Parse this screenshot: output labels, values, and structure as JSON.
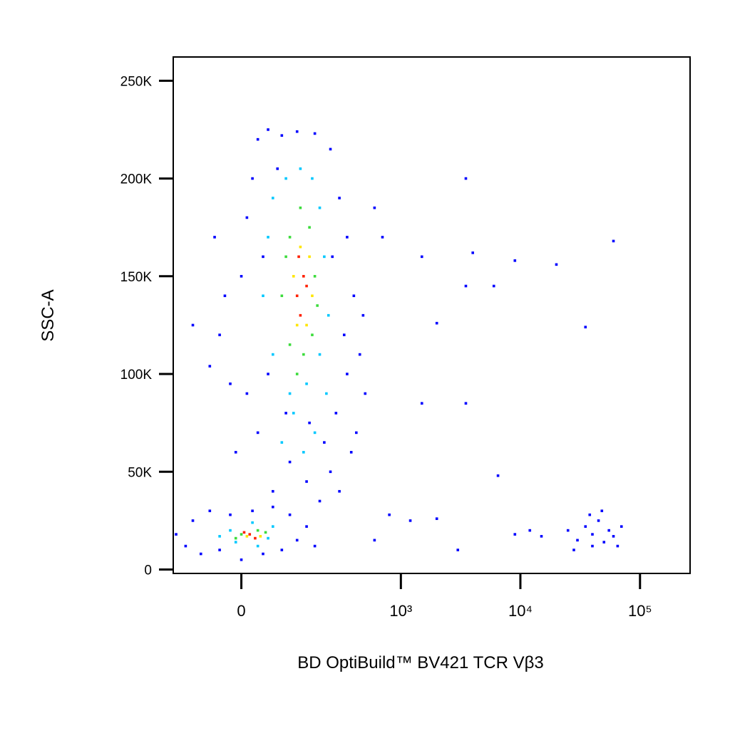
{
  "chart_data": {
    "type": "scatter",
    "xlabel": "BD OptiBuild™ BV421 TCR Vβ3",
    "ylabel": "SSC-A",
    "x_scale": "biexponential",
    "xlim": [
      -160,
      262144
    ],
    "ylim": [
      -2000,
      262144
    ],
    "xticks": [
      0,
      {
        "value": 1000,
        "label": "10³"
      },
      {
        "value": 10000,
        "label": "10⁴"
      },
      {
        "value": 100000,
        "label": "10⁵"
      }
    ],
    "yticks": [
      0,
      {
        "value": 50000,
        "label": "50K"
      },
      {
        "value": 100000,
        "label": "100K"
      },
      {
        "value": 150000,
        "label": "150K"
      },
      {
        "value": 200000,
        "label": "200K"
      },
      {
        "value": 250000,
        "label": "250K"
      }
    ],
    "series": [
      {
        "color": "#0000ff",
        "x": [
          -40,
          -20,
          0,
          10,
          -50,
          20,
          30,
          50,
          80,
          120,
          180,
          250,
          300,
          350,
          400,
          450,
          500,
          420,
          380,
          300,
          250,
          200,
          150,
          100,
          60,
          30,
          10,
          -10,
          -30,
          40,
          70,
          260,
          330,
          280,
          220,
          160,
          90,
          50,
          -60,
          -100,
          350,
          480,
          -150,
          -120,
          -100,
          -80,
          -60,
          -40,
          0,
          40,
          80,
          120,
          150,
          100,
          60,
          20,
          -20,
          180,
          700,
          600,
          1500,
          3500,
          4000,
          9000,
          20000,
          60000,
          35000,
          2000,
          6000,
          3500,
          1500,
          3500,
          6500,
          800,
          1200,
          3000,
          600,
          2000,
          9000,
          25000,
          30000,
          35000,
          40000,
          45000,
          50000,
          55000,
          60000,
          70000,
          28000,
          40000,
          48000,
          38000,
          65000,
          15000,
          12000
        ],
        "values": [
          120000,
          95000,
          150000,
          180000,
          170000,
          200000,
          220000,
          225000,
          222000,
          224000,
          223000,
          215000,
          190000,
          170000,
          140000,
          110000,
          90000,
          70000,
          60000,
          40000,
          50000,
          35000,
          45000,
          55000,
          40000,
          70000,
          90000,
          60000,
          140000,
          160000,
          205000,
          160000,
          120000,
          80000,
          65000,
          75000,
          80000,
          100000,
          104000,
          125000,
          100000,
          130000,
          18000,
          12000,
          25000,
          8000,
          30000,
          10000,
          5000,
          8000,
          10000,
          15000,
          22000,
          28000,
          32000,
          30000,
          28000,
          12000,
          170000,
          185000,
          160000,
          200000,
          162000,
          158000,
          156000,
          168000,
          124000,
          126000,
          145000,
          145000,
          85000,
          85000,
          48000,
          28000,
          25000,
          10000,
          15000,
          26000,
          18000,
          20000,
          15000,
          22000,
          18000,
          25000,
          14000,
          20000,
          17000,
          22000,
          10000,
          12000,
          30000,
          28000,
          12000,
          17000,
          20000
        ]
      },
      {
        "color": "#00c8ff",
        "x": [
          60,
          90,
          130,
          170,
          200,
          220,
          240,
          200,
          150,
          100,
          60,
          40,
          50,
          110,
          180,
          140,
          80,
          230,
          -20,
          -10,
          20,
          50,
          60,
          -40,
          30
        ],
        "values": [
          190000,
          200000,
          205000,
          200000,
          185000,
          160000,
          130000,
          110000,
          95000,
          90000,
          110000,
          140000,
          170000,
          80000,
          70000,
          60000,
          65000,
          90000,
          20000,
          14000,
          24000,
          16000,
          22000,
          17000,
          12000
        ]
      },
      {
        "color": "#3cdc3c",
        "x": [
          100,
          130,
          160,
          180,
          170,
          140,
          100,
          80,
          90,
          190,
          120,
          0,
          30,
          -10,
          45
        ],
        "values": [
          170000,
          185000,
          175000,
          150000,
          120000,
          110000,
          115000,
          140000,
          160000,
          135000,
          100000,
          18000,
          20000,
          16000,
          19000
        ]
      },
      {
        "color": "#ffe600",
        "x": [
          110,
          130,
          160,
          150,
          120,
          170,
          10,
          35
        ],
        "values": [
          150000,
          165000,
          160000,
          125000,
          125000,
          140000,
          17000,
          17000
        ]
      },
      {
        "color": "#ff2000",
        "x": [
          120,
          140,
          130,
          150,
          125,
          15,
          25,
          5
        ],
        "values": [
          140000,
          150000,
          130000,
          145000,
          160000,
          18000,
          16000,
          19000
        ]
      }
    ]
  }
}
